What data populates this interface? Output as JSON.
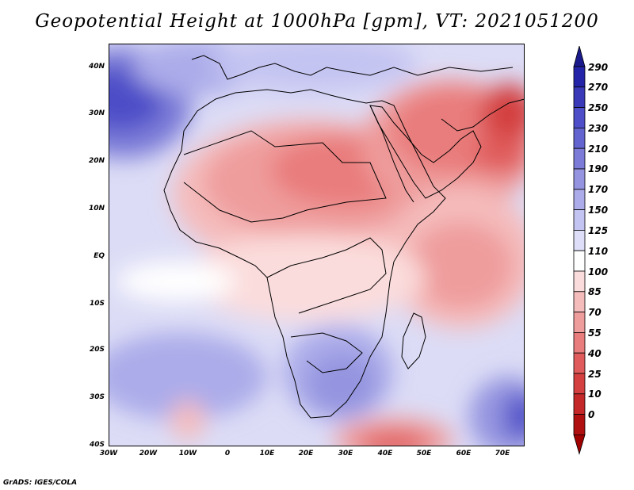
{
  "title": "Geopotential Height at 1000hPa [gpm], VT: 2021051200",
  "footer": "GrADS: IGES/COLA",
  "map": {
    "lat_labels": [
      "40N",
      "30N",
      "20N",
      "10N",
      "EQ",
      "10S",
      "20S",
      "30S",
      "40S"
    ],
    "lon_labels": [
      "30W",
      "20W",
      "10W",
      "0",
      "10E",
      "20E",
      "30E",
      "40E",
      "50E",
      "60E",
      "70E"
    ]
  },
  "colorbar": {
    "labels": [
      "290",
      "270",
      "250",
      "230",
      "210",
      "190",
      "170",
      "150",
      "125",
      "110",
      "100",
      "85",
      "70",
      "55",
      "40",
      "25",
      "10",
      "0"
    ],
    "colors": [
      "#2424a8",
      "#3a3ab8",
      "#4e4ec8",
      "#6464d0",
      "#7c7cd8",
      "#9494e0",
      "#acacea",
      "#c4c4f2",
      "#dedef8",
      "#ffffff",
      "#fbdcdc",
      "#f5bcbc",
      "#ef9c9c",
      "#e97c7c",
      "#e05c5c",
      "#d44040",
      "#c42828",
      "#b01010"
    ],
    "top_arrow": "#1a1a8c",
    "bottom_arrow": "#a00000"
  }
}
